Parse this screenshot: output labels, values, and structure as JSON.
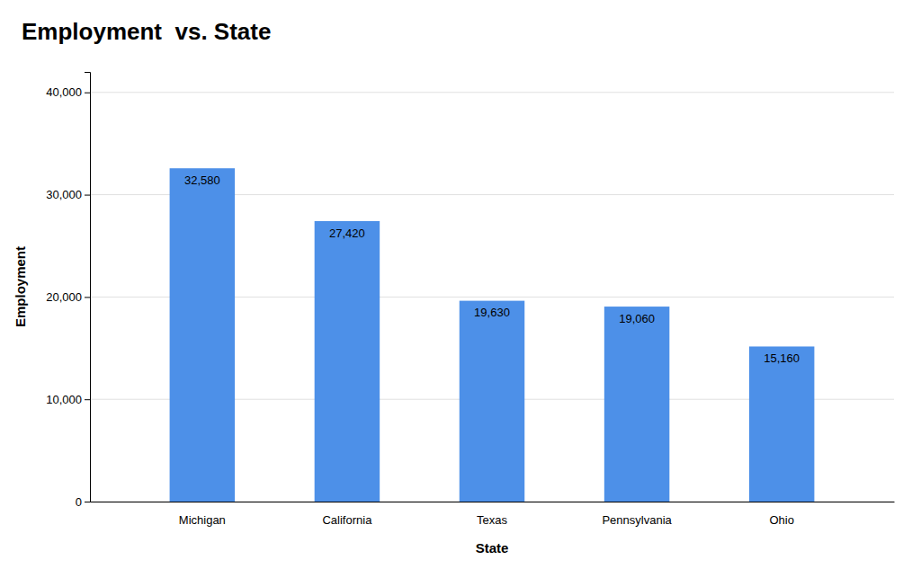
{
  "chart_data": {
    "type": "bar",
    "title": "Employment  vs. State",
    "x_label": "State",
    "y_label": "Employment",
    "categories": [
      "Michigan",
      "California",
      "Texas",
      "Pennsylvania",
      "Ohio"
    ],
    "values": [
      32580,
      27420,
      19630,
      19060,
      15160
    ],
    "value_labels": [
      "32,580",
      "27,420",
      "19,630",
      "19,060",
      "15,160"
    ],
    "color": "#4d90e8",
    "ylim": [
      0,
      42000
    ],
    "yticks": [
      0,
      {
        "value": 10000,
        "label": "10,000"
      },
      {
        "value": 20000,
        "label": "20,000"
      },
      {
        "value": 30000,
        "label": "30,000"
      },
      {
        "value": 40000,
        "label": "40,000"
      }
    ],
    "grid": true,
    "data_labels": true
  }
}
